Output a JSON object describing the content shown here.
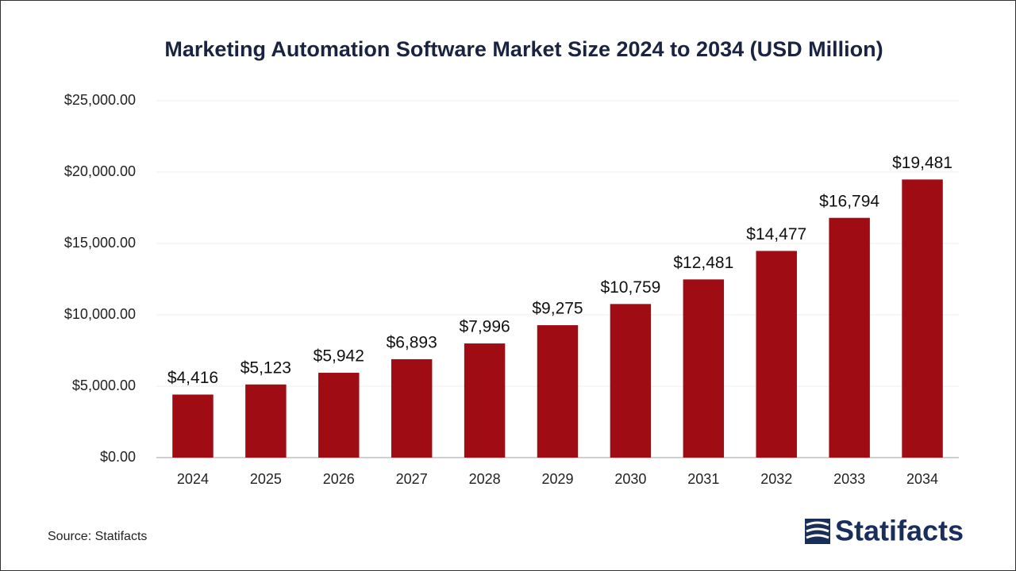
{
  "chart_data": {
    "type": "bar",
    "title": "Marketing Automation Software Market Size 2024 to 2034 (USD Million)",
    "categories": [
      "2024",
      "2025",
      "2026",
      "2027",
      "2028",
      "2029",
      "2030",
      "2031",
      "2032",
      "2033",
      "2034"
    ],
    "values": [
      4416,
      5123,
      5942,
      6893,
      7996,
      9275,
      10759,
      12481,
      14477,
      16794,
      19481
    ],
    "value_labels": [
      "$4,416",
      "$5,123",
      "$5,942",
      "$6,893",
      "$7,996",
      "$9,275",
      "$10,759",
      "$12,481",
      "$14,477",
      "$16,794",
      "$19,481"
    ],
    "color": "#a00c14",
    "ylim": [
      0,
      25000
    ],
    "yticks": [
      {
        "value": 0,
        "label": "$0.00"
      },
      {
        "value": 5000,
        "label": "$5,000.00"
      },
      {
        "value": 10000,
        "label": "$10,000.00"
      },
      {
        "value": 15000,
        "label": "$15,000.00"
      },
      {
        "value": 20000,
        "label": "$20,000.00"
      },
      {
        "value": 25000,
        "label": "$25,000.00"
      }
    ],
    "grid": true
  },
  "source": "Source: Statifacts",
  "logo": "Statifacts"
}
